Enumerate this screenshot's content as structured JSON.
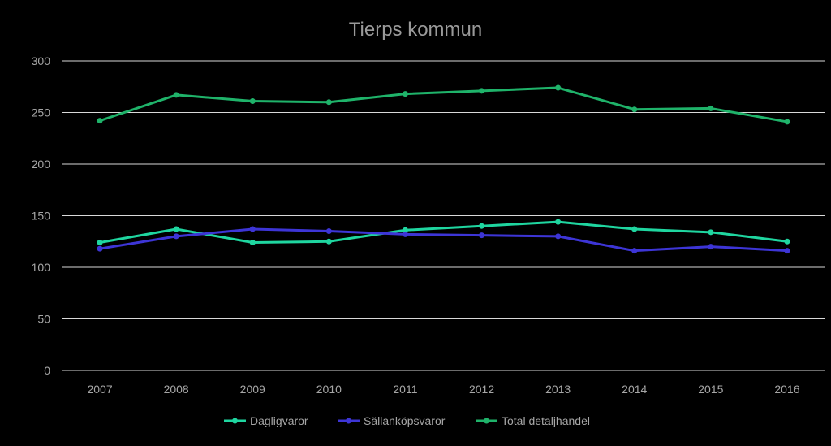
{
  "chart_data": {
    "type": "line",
    "title": "Tierps kommun",
    "xlabel": "",
    "ylabel": "",
    "ylim": [
      0,
      300
    ],
    "yticks": [
      0,
      50,
      100,
      150,
      200,
      250,
      300
    ],
    "categories": [
      "2007",
      "2008",
      "2009",
      "2010",
      "2011",
      "2012",
      "2013",
      "2014",
      "2015",
      "2016"
    ],
    "grid": true,
    "legend_position": "bottom",
    "series": [
      {
        "name": "Dagligvaror",
        "color": "#1fd6a0",
        "values": [
          124,
          137,
          124,
          125,
          136,
          140,
          144,
          137,
          134,
          125
        ]
      },
      {
        "name": "Sällanköpsvaror",
        "color": "#3d35d6",
        "values": [
          118,
          130,
          137,
          135,
          132,
          131,
          130,
          116,
          120,
          116
        ]
      },
      {
        "name": "Total detaljhandel",
        "color": "#1fb36a",
        "values": [
          242,
          267,
          261,
          260,
          268,
          271,
          274,
          253,
          254,
          241
        ]
      }
    ]
  }
}
